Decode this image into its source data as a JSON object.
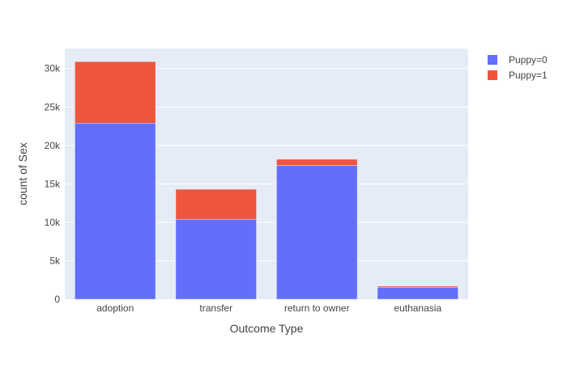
{
  "chart_data": {
    "type": "bar",
    "barmode": "stack",
    "categories": [
      "adoption",
      "transfer",
      "return to owner",
      "euthanasia"
    ],
    "series": [
      {
        "name": "Puppy=0",
        "values": [
          22900,
          10400,
          17400,
          1500
        ],
        "color": "#636efa"
      },
      {
        "name": "Puppy=1",
        "values": [
          8000,
          3900,
          800,
          200
        ],
        "color": "#ef553b"
      }
    ],
    "xlabel": "Outcome Type",
    "ylabel": "count of Sex",
    "ylim": [
      0,
      32600
    ],
    "yticks": [
      0,
      5000,
      10000,
      15000,
      20000,
      25000,
      30000
    ],
    "ytick_labels": [
      "0",
      "5k",
      "10k",
      "15k",
      "20k",
      "25k",
      "30k"
    ],
    "grid": true,
    "legend_position": "top-right",
    "plot_background": "#e5ecf6"
  }
}
